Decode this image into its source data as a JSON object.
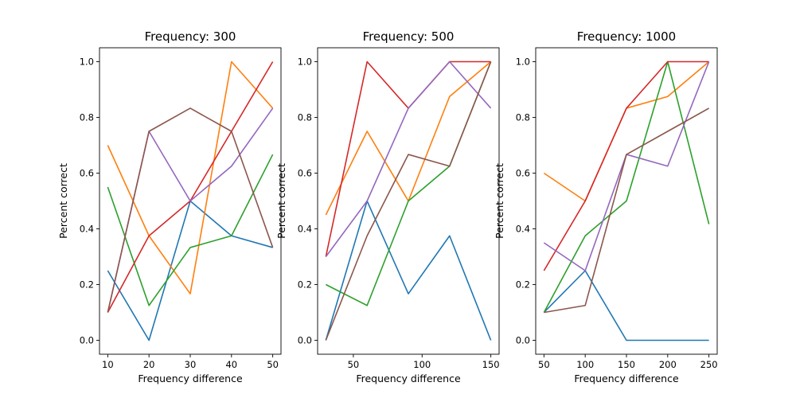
{
  "chart_data": [
    {
      "type": "line",
      "title": "Frequency: 300",
      "xlabel": "Frequency difference",
      "ylabel": "Percent correct",
      "x": [
        10,
        20,
        30,
        40,
        50
      ],
      "xlim": [
        8,
        52
      ],
      "ylim": [
        -0.05,
        1.05
      ],
      "xticks": [
        10,
        20,
        30,
        40,
        50
      ],
      "yticks": [
        0.0,
        0.2,
        0.4,
        0.6,
        0.8,
        1.0
      ],
      "grid": false,
      "series": [
        {
          "color": "#1f77b4",
          "values": [
            0.25,
            0.0,
            0.5,
            0.375,
            0.333
          ]
        },
        {
          "color": "#ff7f0e",
          "values": [
            0.7,
            0.375,
            0.167,
            1.0,
            0.833
          ]
        },
        {
          "color": "#2ca02c",
          "values": [
            0.55,
            0.125,
            0.333,
            0.375,
            0.667
          ]
        },
        {
          "color": "#d62728",
          "values": [
            0.1,
            0.375,
            0.5,
            0.75,
            1.0
          ]
        },
        {
          "color": "#9467bd",
          "values": [
            0.1,
            0.75,
            0.5,
            0.625,
            0.833
          ]
        },
        {
          "color": "#8c564b",
          "values": [
            0.1,
            0.75,
            0.833,
            0.75,
            0.333
          ]
        }
      ]
    },
    {
      "type": "line",
      "title": "Frequency: 500",
      "xlabel": "Frequency difference",
      "ylabel": "Percent correct",
      "x": [
        30,
        60,
        90,
        120,
        150
      ],
      "xlim": [
        24,
        156
      ],
      "ylim": [
        -0.05,
        1.05
      ],
      "xticks": [
        50,
        100,
        150
      ],
      "yticks": [
        0.0,
        0.2,
        0.4,
        0.6,
        0.8,
        1.0
      ],
      "grid": false,
      "series": [
        {
          "color": "#1f77b4",
          "values": [
            0.0,
            0.5,
            0.167,
            0.375,
            0.0
          ]
        },
        {
          "color": "#ff7f0e",
          "values": [
            0.45,
            0.75,
            0.5,
            0.875,
            1.0
          ]
        },
        {
          "color": "#2ca02c",
          "values": [
            0.2,
            0.125,
            0.5,
            0.625,
            1.0
          ]
        },
        {
          "color": "#d62728",
          "values": [
            0.3,
            1.0,
            0.833,
            1.0,
            1.0
          ]
        },
        {
          "color": "#9467bd",
          "values": [
            0.3,
            0.5,
            0.833,
            1.0,
            0.833
          ]
        },
        {
          "color": "#8c564b",
          "values": [
            0.0,
            0.375,
            0.667,
            0.625,
            1.0
          ]
        }
      ]
    },
    {
      "type": "line",
      "title": "Frequency: 1000",
      "xlabel": "Frequency difference",
      "ylabel": "Percent correct",
      "x": [
        50,
        100,
        150,
        200,
        250
      ],
      "xlim": [
        40,
        260
      ],
      "ylim": [
        -0.05,
        1.05
      ],
      "xticks": [
        50,
        100,
        150,
        200,
        250
      ],
      "yticks": [
        0.0,
        0.2,
        0.4,
        0.6,
        0.8,
        1.0
      ],
      "grid": false,
      "series": [
        {
          "color": "#1f77b4",
          "values": [
            0.1,
            0.25,
            0.0,
            0.0,
            0.0
          ]
        },
        {
          "color": "#ff7f0e",
          "values": [
            0.6,
            0.5,
            0.833,
            0.875,
            1.0
          ]
        },
        {
          "color": "#2ca02c",
          "values": [
            0.1,
            0.375,
            0.5,
            1.0,
            0.417
          ]
        },
        {
          "color": "#d62728",
          "values": [
            0.25,
            0.5,
            0.833,
            1.0,
            1.0
          ]
        },
        {
          "color": "#9467bd",
          "values": [
            0.35,
            0.25,
            0.667,
            0.625,
            1.0
          ]
        },
        {
          "color": "#8c564b",
          "values": [
            0.1,
            0.125,
            0.667,
            0.75,
            0.833
          ]
        }
      ]
    }
  ]
}
